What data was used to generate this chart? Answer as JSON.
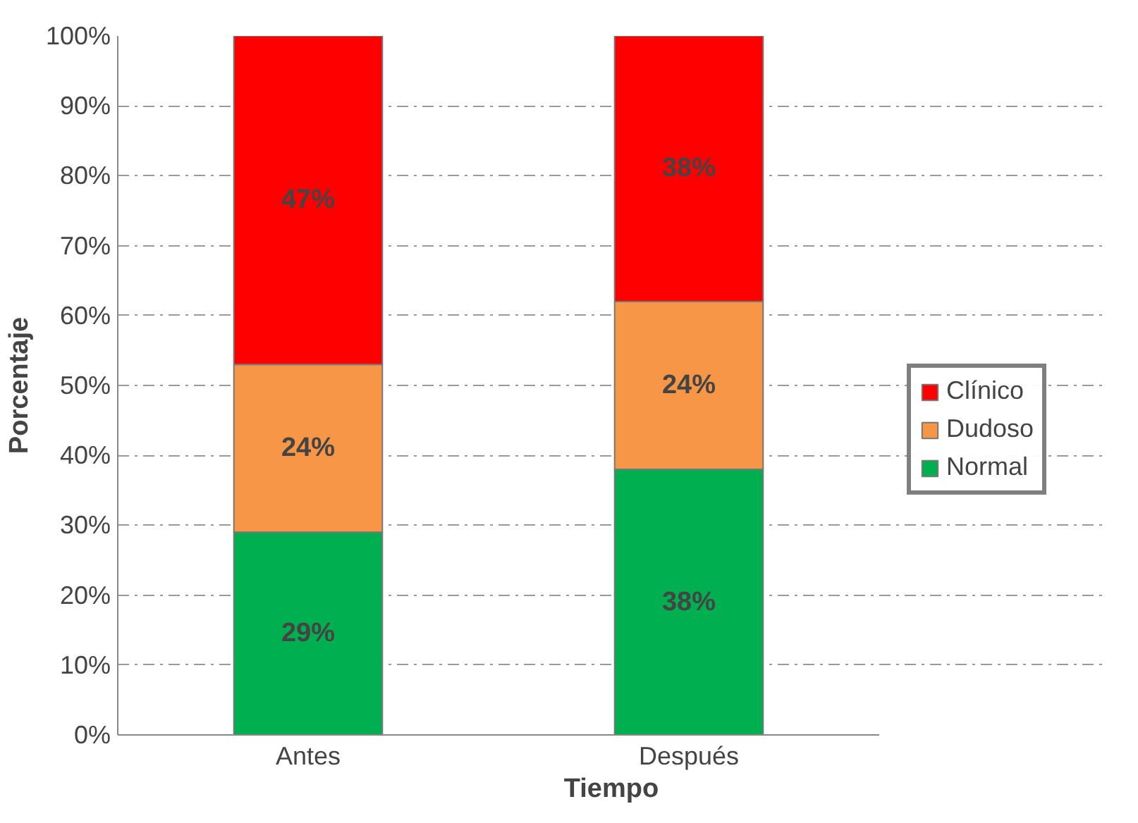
{
  "chart_data": {
    "type": "bar",
    "stacked": true,
    "xlabel": "Tiempo",
    "ylabel": "Porcentaje",
    "categories": [
      "Antes",
      "Después"
    ],
    "series": [
      {
        "name": "Normal",
        "color": "#00b050",
        "values": [
          29,
          38
        ],
        "value_labels": [
          "29%",
          "38%"
        ]
      },
      {
        "name": "Dudoso",
        "color": "#f79646",
        "values": [
          24,
          24
        ],
        "value_labels": [
          "24%",
          "24%"
        ]
      },
      {
        "name": "Clínico",
        "color": "#ff0000",
        "values": [
          47,
          38
        ],
        "value_labels": [
          "47%",
          "38%"
        ]
      }
    ],
    "ylim": [
      0,
      100
    ],
    "yticks": [
      {
        "value": 0,
        "label": "0%"
      },
      {
        "value": 10,
        "label": "10%"
      },
      {
        "value": 20,
        "label": "20%"
      },
      {
        "value": 30,
        "label": "30%"
      },
      {
        "value": 40,
        "label": "40%"
      },
      {
        "value": 50,
        "label": "50%"
      },
      {
        "value": 60,
        "label": "60%"
      },
      {
        "value": 70,
        "label": "70%"
      },
      {
        "value": 80,
        "label": "80%"
      },
      {
        "value": 90,
        "label": "90%"
      },
      {
        "value": 100,
        "label": "100%"
      }
    ],
    "grid": "y",
    "legend": "right"
  }
}
